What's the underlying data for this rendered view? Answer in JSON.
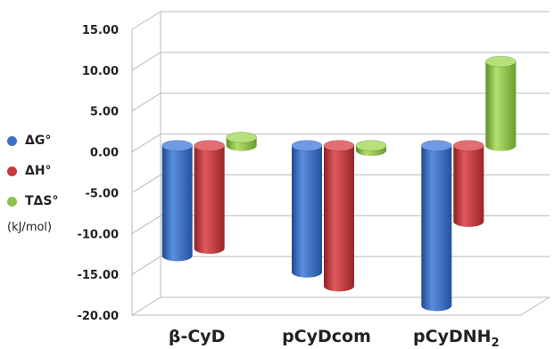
{
  "chart_data": {
    "type": "bar",
    "style": "3d-cylinder",
    "title": "",
    "unit_label": "(kJ/mol)",
    "categories": [
      "β-CyD",
      "pCyDcom",
      "pCyDNH"
    ],
    "category_subscripts": [
      "",
      "",
      "2"
    ],
    "series": [
      {
        "name": "ΔG°",
        "color": "#3e6fc4",
        "values": [
          -13.5,
          -15.5,
          -19.6
        ]
      },
      {
        "name": "ΔH°",
        "color": "#c9383d",
        "values": [
          -12.6,
          -17.2,
          -9.3
        ]
      },
      {
        "name": "TΔS°",
        "color": "#8cc24a",
        "values": [
          1.0,
          -0.6,
          10.3
        ]
      }
    ],
    "ylim": [
      -20,
      15
    ],
    "yticks": [
      "15.00",
      "10.00",
      "5.00",
      "0.00",
      "-5.00",
      "-10.00",
      "-15.00",
      "-20.00"
    ],
    "grid": true,
    "legend_position": "left"
  }
}
